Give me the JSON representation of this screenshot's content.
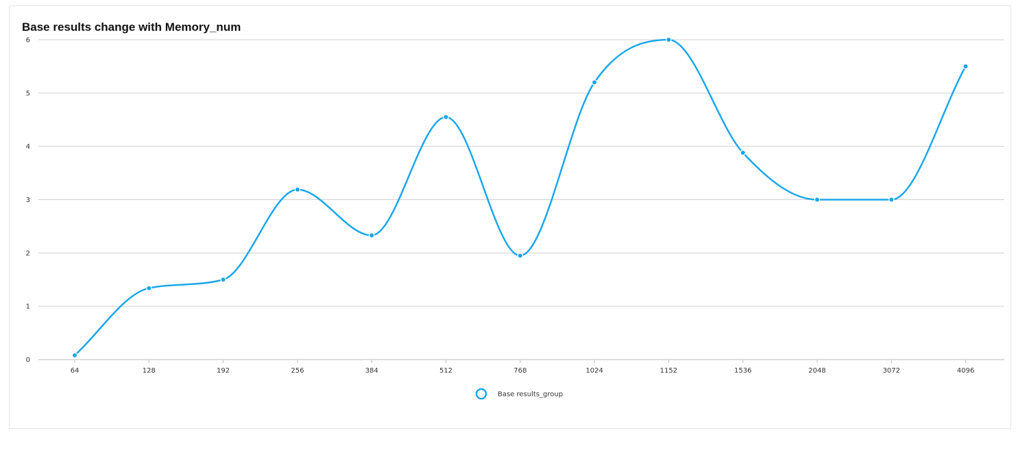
{
  "chart_data": {
    "type": "line",
    "title": "Base results change with Memory_num",
    "xlabel": "",
    "ylabel": "",
    "categories": [
      "64",
      "128",
      "192",
      "256",
      "384",
      "512",
      "768",
      "1024",
      "1152",
      "1536",
      "2048",
      "3072",
      "4096"
    ],
    "series": [
      {
        "name": "Base results_group",
        "values": [
          0.08,
          1.34,
          1.5,
          3.19,
          2.33,
          4.55,
          1.95,
          5.2,
          6.0,
          3.88,
          3.0,
          3.0,
          5.5
        ]
      }
    ],
    "ylim": [
      0,
      6
    ],
    "yticks": [
      0,
      1,
      2,
      3,
      4,
      5,
      6
    ],
    "grid": true,
    "smooth": true,
    "legend_position": "bottom-center",
    "colors": {
      "series": "#1aa7ec",
      "grid": "#d0d0d0",
      "axis": "#bdbdbd"
    }
  }
}
